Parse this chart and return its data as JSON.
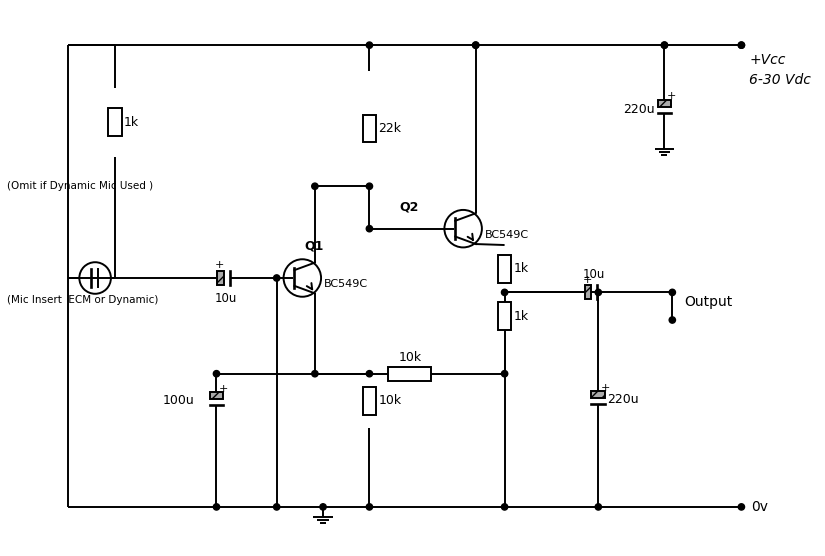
{
  "bg_color": "#ffffff",
  "lc": "#000000",
  "lw": 1.4,
  "labels": {
    "R1": "1k",
    "R2": "22k",
    "R3": "10k",
    "R4": "10k",
    "R5": "1k",
    "R6": "1k",
    "C1": "10u",
    "C2": "100u",
    "C3": "10u",
    "C4": "220u",
    "C5": "220u",
    "Q1": "Q1",
    "Q2": "Q2",
    "Q1_type": "BC549C",
    "Q2_type": "BC549C",
    "vcc": "+Vcc",
    "vdc": "6-30 Vdc",
    "ov": "0v",
    "output": "Output",
    "mic": "(Mic Insert  ECM or Dynamic)",
    "omit": "(Omit if Dynamic Mic Used )"
  }
}
